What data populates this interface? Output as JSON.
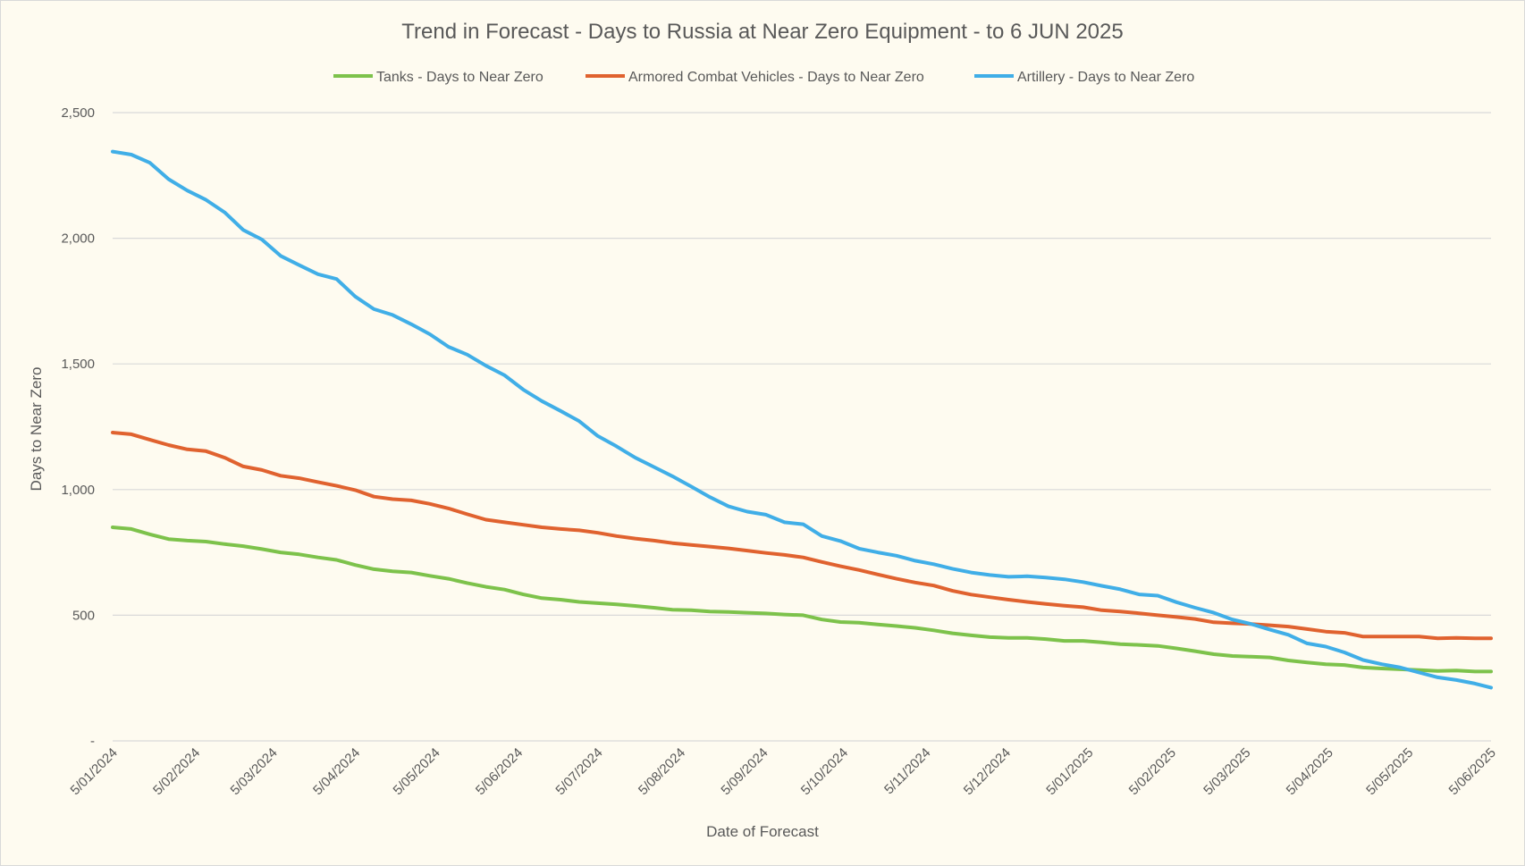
{
  "chart_data": {
    "type": "line",
    "title": "Trend in Forecast - Days to Russia at Near Zero Equipment - to 6 JUN 2025",
    "xlabel": "Date of Forecast",
    "ylabel": "Days to Near Zero",
    "ylim": [
      0,
      2500
    ],
    "yticks": [
      0,
      500,
      1000,
      1500,
      2000,
      2500
    ],
    "ytick_labels": [
      "-",
      "500",
      "1,000",
      "1,500",
      "2,000",
      "2,500"
    ],
    "x_range": [
      "2024-01-05",
      "2025-06-05"
    ],
    "x_ticks": [
      {
        "date": "2024-01-05",
        "label": "5/01/2024"
      },
      {
        "date": "2024-02-05",
        "label": "5/02/2024"
      },
      {
        "date": "2024-03-05",
        "label": "5/03/2024"
      },
      {
        "date": "2024-04-05",
        "label": "5/04/2024"
      },
      {
        "date": "2024-05-05",
        "label": "5/05/2024"
      },
      {
        "date": "2024-06-05",
        "label": "5/06/2024"
      },
      {
        "date": "2024-07-05",
        "label": "5/07/2024"
      },
      {
        "date": "2024-08-05",
        "label": "5/08/2024"
      },
      {
        "date": "2024-09-05",
        "label": "5/09/2024"
      },
      {
        "date": "2024-10-05",
        "label": "5/10/2024"
      },
      {
        "date": "2024-11-05",
        "label": "5/11/2024"
      },
      {
        "date": "2024-12-05",
        "label": "5/12/2024"
      },
      {
        "date": "2025-01-05",
        "label": "5/01/2025"
      },
      {
        "date": "2025-02-05",
        "label": "5/02/2025"
      },
      {
        "date": "2025-03-05",
        "label": "5/03/2025"
      },
      {
        "date": "2025-04-05",
        "label": "5/04/2025"
      },
      {
        "date": "2025-05-05",
        "label": "5/05/2025"
      },
      {
        "date": "2025-06-05",
        "label": "5/06/2025"
      }
    ],
    "grid": true,
    "legend_position": "top",
    "series": [
      {
        "name": "Tanks - Days to Near Zero",
        "color": "#7dc24b",
        "points": [
          [
            "2024-01-05",
            850
          ],
          [
            "2024-01-12",
            843
          ],
          [
            "2024-01-19",
            822
          ],
          [
            "2024-01-26",
            803
          ],
          [
            "2024-02-02",
            797
          ],
          [
            "2024-02-09",
            793
          ],
          [
            "2024-02-16",
            783
          ],
          [
            "2024-02-23",
            775
          ],
          [
            "2024-03-01",
            763
          ],
          [
            "2024-03-08",
            750
          ],
          [
            "2024-03-15",
            742
          ],
          [
            "2024-03-22",
            730
          ],
          [
            "2024-03-29",
            720
          ],
          [
            "2024-04-05",
            700
          ],
          [
            "2024-04-12",
            683
          ],
          [
            "2024-04-19",
            675
          ],
          [
            "2024-04-26",
            670
          ],
          [
            "2024-05-03",
            657
          ],
          [
            "2024-05-10",
            645
          ],
          [
            "2024-05-17",
            628
          ],
          [
            "2024-05-24",
            613
          ],
          [
            "2024-05-31",
            602
          ],
          [
            "2024-06-07",
            583
          ],
          [
            "2024-06-14",
            568
          ],
          [
            "2024-06-21",
            562
          ],
          [
            "2024-06-28",
            553
          ],
          [
            "2024-07-05",
            548
          ],
          [
            "2024-07-12",
            543
          ],
          [
            "2024-07-19",
            537
          ],
          [
            "2024-07-26",
            530
          ],
          [
            "2024-08-02",
            522
          ],
          [
            "2024-08-09",
            520
          ],
          [
            "2024-08-16",
            515
          ],
          [
            "2024-08-23",
            513
          ],
          [
            "2024-08-30",
            510
          ],
          [
            "2024-09-06",
            507
          ],
          [
            "2024-09-13",
            503
          ],
          [
            "2024-09-20",
            500
          ],
          [
            "2024-09-27",
            483
          ],
          [
            "2024-10-04",
            473
          ],
          [
            "2024-10-11",
            470
          ],
          [
            "2024-10-18",
            463
          ],
          [
            "2024-10-25",
            457
          ],
          [
            "2024-11-01",
            450
          ],
          [
            "2024-11-08",
            440
          ],
          [
            "2024-11-15",
            428
          ],
          [
            "2024-11-22",
            420
          ],
          [
            "2024-11-29",
            413
          ],
          [
            "2024-12-06",
            410
          ],
          [
            "2024-12-13",
            410
          ],
          [
            "2024-12-20",
            405
          ],
          [
            "2024-12-27",
            398
          ],
          [
            "2025-01-03",
            398
          ],
          [
            "2025-01-10",
            392
          ],
          [
            "2025-01-17",
            385
          ],
          [
            "2025-01-24",
            382
          ],
          [
            "2025-01-31",
            378
          ],
          [
            "2025-02-07",
            368
          ],
          [
            "2025-02-14",
            357
          ],
          [
            "2025-02-21",
            345
          ],
          [
            "2025-02-28",
            338
          ],
          [
            "2025-03-07",
            335
          ],
          [
            "2025-03-14",
            332
          ],
          [
            "2025-03-21",
            320
          ],
          [
            "2025-03-28",
            312
          ],
          [
            "2025-04-04",
            305
          ],
          [
            "2025-04-11",
            302
          ],
          [
            "2025-04-18",
            292
          ],
          [
            "2025-04-25",
            288
          ],
          [
            "2025-05-02",
            285
          ],
          [
            "2025-05-09",
            282
          ],
          [
            "2025-05-16",
            278
          ],
          [
            "2025-05-23",
            280
          ],
          [
            "2025-05-30",
            276
          ],
          [
            "2025-06-05",
            276
          ]
        ]
      },
      {
        "name": "Armored Combat Vehicles - Days to Near Zero",
        "color": "#e0622f",
        "points": [
          [
            "2024-01-05",
            1227
          ],
          [
            "2024-01-12",
            1220
          ],
          [
            "2024-01-19",
            1198
          ],
          [
            "2024-01-26",
            1177
          ],
          [
            "2024-02-02",
            1160
          ],
          [
            "2024-02-09",
            1153
          ],
          [
            "2024-02-16",
            1127
          ],
          [
            "2024-02-23",
            1092
          ],
          [
            "2024-03-01",
            1078
          ],
          [
            "2024-03-08",
            1055
          ],
          [
            "2024-03-15",
            1045
          ],
          [
            "2024-03-22",
            1030
          ],
          [
            "2024-03-29",
            1015
          ],
          [
            "2024-04-05",
            998
          ],
          [
            "2024-04-12",
            972
          ],
          [
            "2024-04-19",
            962
          ],
          [
            "2024-04-26",
            957
          ],
          [
            "2024-05-03",
            943
          ],
          [
            "2024-05-10",
            925
          ],
          [
            "2024-05-17",
            902
          ],
          [
            "2024-05-24",
            880
          ],
          [
            "2024-05-31",
            870
          ],
          [
            "2024-06-07",
            860
          ],
          [
            "2024-06-14",
            850
          ],
          [
            "2024-06-21",
            843
          ],
          [
            "2024-06-28",
            838
          ],
          [
            "2024-07-05",
            828
          ],
          [
            "2024-07-12",
            815
          ],
          [
            "2024-07-19",
            805
          ],
          [
            "2024-07-26",
            797
          ],
          [
            "2024-08-02",
            787
          ],
          [
            "2024-08-09",
            780
          ],
          [
            "2024-08-16",
            773
          ],
          [
            "2024-08-23",
            766
          ],
          [
            "2024-08-30",
            757
          ],
          [
            "2024-09-06",
            748
          ],
          [
            "2024-09-13",
            740
          ],
          [
            "2024-09-20",
            730
          ],
          [
            "2024-09-27",
            712
          ],
          [
            "2024-10-04",
            695
          ],
          [
            "2024-10-11",
            680
          ],
          [
            "2024-10-18",
            662
          ],
          [
            "2024-10-25",
            645
          ],
          [
            "2024-11-01",
            630
          ],
          [
            "2024-11-08",
            618
          ],
          [
            "2024-11-15",
            597
          ],
          [
            "2024-11-22",
            582
          ],
          [
            "2024-11-29",
            572
          ],
          [
            "2024-12-06",
            562
          ],
          [
            "2024-12-13",
            553
          ],
          [
            "2024-12-20",
            545
          ],
          [
            "2024-12-27",
            538
          ],
          [
            "2025-01-03",
            532
          ],
          [
            "2025-01-10",
            520
          ],
          [
            "2025-01-17",
            515
          ],
          [
            "2025-01-24",
            508
          ],
          [
            "2025-01-31",
            500
          ],
          [
            "2025-02-07",
            493
          ],
          [
            "2025-02-14",
            485
          ],
          [
            "2025-02-21",
            472
          ],
          [
            "2025-02-28",
            468
          ],
          [
            "2025-03-07",
            465
          ],
          [
            "2025-03-14",
            460
          ],
          [
            "2025-03-21",
            455
          ],
          [
            "2025-03-28",
            445
          ],
          [
            "2025-04-04",
            435
          ],
          [
            "2025-04-11",
            430
          ],
          [
            "2025-04-18",
            415
          ],
          [
            "2025-04-25",
            415
          ],
          [
            "2025-05-02",
            415
          ],
          [
            "2025-05-09",
            415
          ],
          [
            "2025-05-16",
            408
          ],
          [
            "2025-05-23",
            410
          ],
          [
            "2025-05-30",
            408
          ],
          [
            "2025-06-05",
            408
          ]
        ]
      },
      {
        "name": "Artillery - Days to Near Zero",
        "color": "#40aee7",
        "points": [
          [
            "2024-01-05",
            2345
          ],
          [
            "2024-01-12",
            2333
          ],
          [
            "2024-01-19",
            2300
          ],
          [
            "2024-01-26",
            2235
          ],
          [
            "2024-02-02",
            2190
          ],
          [
            "2024-02-09",
            2153
          ],
          [
            "2024-02-16",
            2103
          ],
          [
            "2024-02-23",
            2033
          ],
          [
            "2024-03-01",
            1995
          ],
          [
            "2024-03-08",
            1930
          ],
          [
            "2024-03-15",
            1893
          ],
          [
            "2024-03-22",
            1857
          ],
          [
            "2024-03-29",
            1838
          ],
          [
            "2024-04-05",
            1768
          ],
          [
            "2024-04-12",
            1718
          ],
          [
            "2024-04-19",
            1695
          ],
          [
            "2024-04-26",
            1658
          ],
          [
            "2024-05-03",
            1618
          ],
          [
            "2024-05-10",
            1568
          ],
          [
            "2024-05-17",
            1537
          ],
          [
            "2024-05-24",
            1493
          ],
          [
            "2024-05-31",
            1455
          ],
          [
            "2024-06-07",
            1398
          ],
          [
            "2024-06-14",
            1352
          ],
          [
            "2024-06-21",
            1313
          ],
          [
            "2024-06-28",
            1272
          ],
          [
            "2024-07-05",
            1213
          ],
          [
            "2024-07-12",
            1172
          ],
          [
            "2024-07-19",
            1127
          ],
          [
            "2024-07-26",
            1090
          ],
          [
            "2024-08-02",
            1053
          ],
          [
            "2024-08-09",
            1012
          ],
          [
            "2024-08-16",
            970
          ],
          [
            "2024-08-23",
            933
          ],
          [
            "2024-08-30",
            912
          ],
          [
            "2024-09-06",
            900
          ],
          [
            "2024-09-13",
            870
          ],
          [
            "2024-09-20",
            862
          ],
          [
            "2024-09-27",
            815
          ],
          [
            "2024-10-04",
            795
          ],
          [
            "2024-10-11",
            765
          ],
          [
            "2024-10-18",
            750
          ],
          [
            "2024-10-25",
            737
          ],
          [
            "2024-11-01",
            717
          ],
          [
            "2024-11-08",
            703
          ],
          [
            "2024-11-15",
            685
          ],
          [
            "2024-11-22",
            670
          ],
          [
            "2024-11-29",
            660
          ],
          [
            "2024-12-06",
            653
          ],
          [
            "2024-12-13",
            655
          ],
          [
            "2024-12-20",
            650
          ],
          [
            "2024-12-27",
            643
          ],
          [
            "2025-01-03",
            632
          ],
          [
            "2025-01-10",
            617
          ],
          [
            "2025-01-17",
            603
          ],
          [
            "2025-01-24",
            583
          ],
          [
            "2025-01-31",
            578
          ],
          [
            "2025-02-07",
            552
          ],
          [
            "2025-02-14",
            530
          ],
          [
            "2025-02-21",
            510
          ],
          [
            "2025-02-28",
            483
          ],
          [
            "2025-03-07",
            465
          ],
          [
            "2025-03-14",
            443
          ],
          [
            "2025-03-21",
            422
          ],
          [
            "2025-03-28",
            388
          ],
          [
            "2025-04-04",
            375
          ],
          [
            "2025-04-11",
            352
          ],
          [
            "2025-04-18",
            322
          ],
          [
            "2025-04-25",
            305
          ],
          [
            "2025-05-02",
            292
          ],
          [
            "2025-05-09",
            272
          ],
          [
            "2025-05-16",
            253
          ],
          [
            "2025-05-23",
            242
          ],
          [
            "2025-05-30",
            228
          ],
          [
            "2025-06-05",
            212
          ]
        ]
      }
    ]
  }
}
